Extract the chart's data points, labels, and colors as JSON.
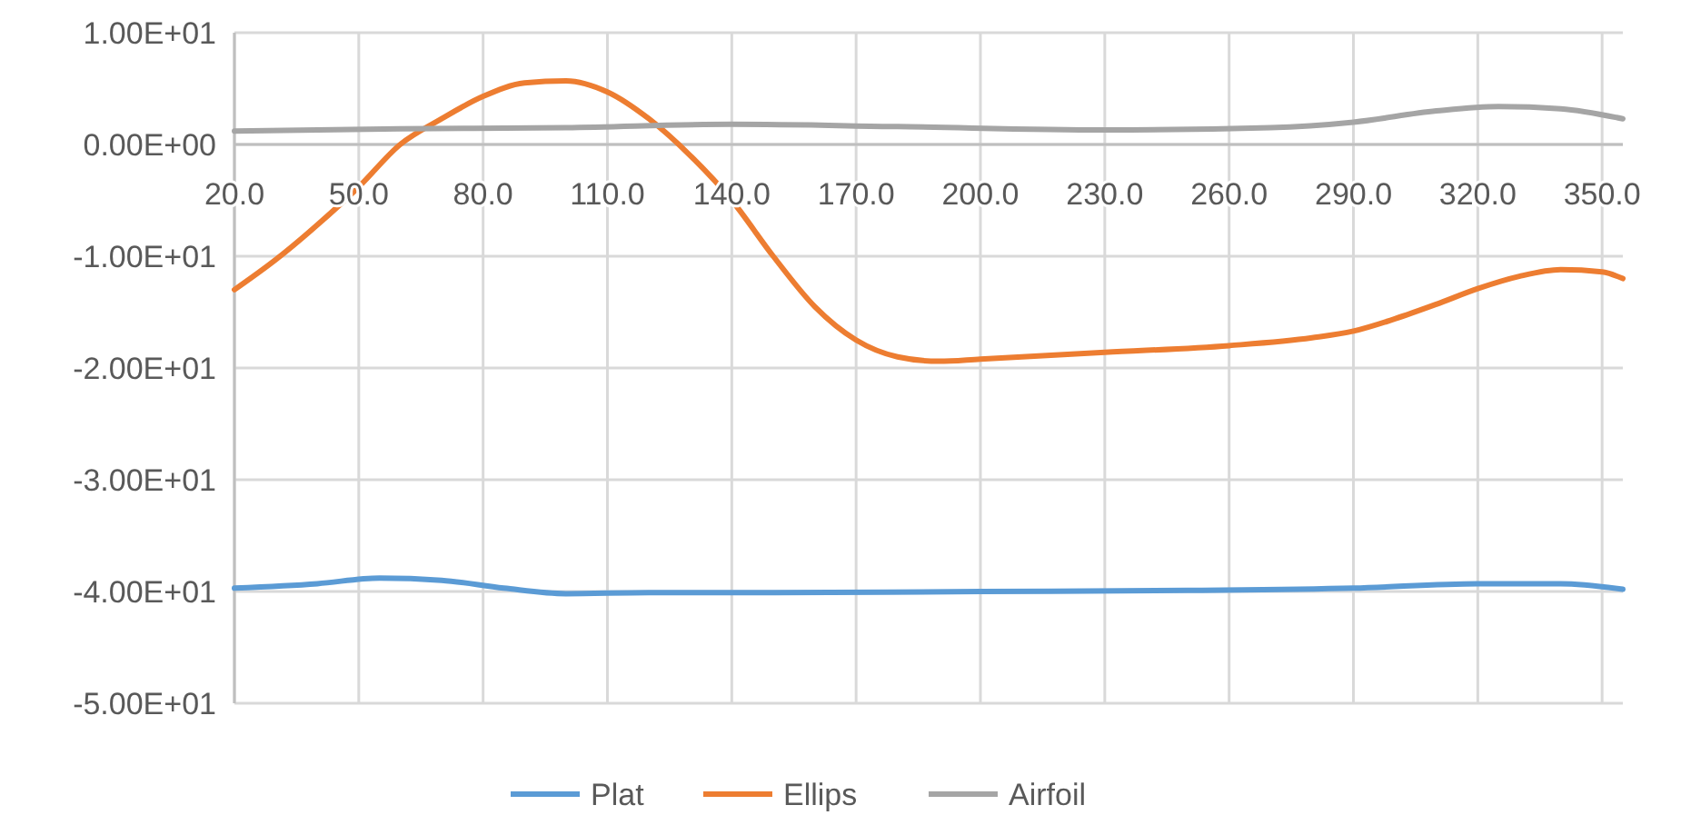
{
  "chart_data": {
    "type": "line",
    "xlim": [
      20,
      355
    ],
    "xticks": [
      {
        "value": 20,
        "label": "20.0"
      },
      {
        "value": 50,
        "label": "50.0"
      },
      {
        "value": 80,
        "label": "80.0"
      },
      {
        "value": 110,
        "label": "110.0"
      },
      {
        "value": 140,
        "label": "140.0"
      },
      {
        "value": 170,
        "label": "170.0"
      },
      {
        "value": 200,
        "label": "200.0"
      },
      {
        "value": 230,
        "label": "230.0"
      },
      {
        "value": 260,
        "label": "260.0"
      },
      {
        "value": 290,
        "label": "290.0"
      },
      {
        "value": 320,
        "label": "320.0"
      },
      {
        "value": 350,
        "label": "350.0"
      }
    ],
    "ylim": [
      -50,
      10
    ],
    "yticks": [
      {
        "value": 10,
        "label": "1.00E+01"
      },
      {
        "value": 0,
        "label": "0.00E+00"
      },
      {
        "value": -10,
        "label": "-1.00E+01"
      },
      {
        "value": -20,
        "label": "-2.00E+01"
      },
      {
        "value": -30,
        "label": "-3.00E+01"
      },
      {
        "value": -40,
        "label": "-4.00E+01"
      },
      {
        "value": -50,
        "label": "-5.00E+01"
      }
    ],
    "grid": true,
    "legend": "bottom",
    "marker": "none",
    "line_style": "solid",
    "series": [
      {
        "name": "Plat",
        "color": "#5b9bd5",
        "x": [
          20,
          40,
          55,
          70,
          85,
          100,
          120,
          150,
          200,
          250,
          290,
          320,
          340,
          355
        ],
        "values": [
          -39.7,
          -39.3,
          -38.8,
          -39.0,
          -39.7,
          -40.2,
          -40.1,
          -40.1,
          -40.0,
          -39.9,
          -39.7,
          -39.3,
          -39.3,
          -39.8
        ]
      },
      {
        "name": "Ellips",
        "color": "#ed7d31",
        "x": [
          20,
          30,
          40,
          50,
          60,
          70,
          80,
          90,
          100,
          110,
          120,
          130,
          140,
          150,
          160,
          170,
          180,
          190,
          200,
          230,
          260,
          280,
          290,
          300,
          310,
          320,
          330,
          340,
          350,
          355
        ],
        "values": [
          -13.0,
          -10.3,
          -7.2,
          -3.8,
          0.0,
          2.3,
          4.3,
          5.5,
          5.7,
          4.7,
          2.3,
          -1.0,
          -5.0,
          -10.0,
          -14.5,
          -17.5,
          -19.0,
          -19.4,
          -19.2,
          -18.6,
          -18.0,
          -17.3,
          -16.7,
          -15.6,
          -14.3,
          -12.9,
          -11.8,
          -11.2,
          -11.4,
          -12.0
        ]
      },
      {
        "name": "Airfoil",
        "color": "#a5a5a5",
        "x": [
          20,
          60,
          100,
          140,
          180,
          230,
          270,
          290,
          310,
          325,
          340,
          355
        ],
        "values": [
          1.2,
          1.4,
          1.5,
          1.8,
          1.6,
          1.3,
          1.5,
          2.0,
          3.0,
          3.4,
          3.2,
          2.3
        ]
      }
    ]
  }
}
